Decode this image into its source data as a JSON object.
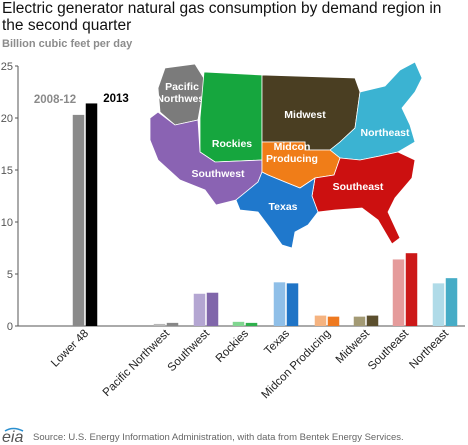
{
  "chart_data": {
    "type": "bar",
    "title": "Electric generator natural gas consumption by demand region in the second quarter",
    "ylabel": "Billion cubic feet per day",
    "ylim": [
      0,
      25
    ],
    "yticks": [
      0,
      5,
      10,
      15,
      20,
      25
    ],
    "grid": false,
    "legend_placement": "top-left (on Lower 48 bars)",
    "categories": [
      "Lower 48",
      "Pacific Northwest",
      "Southwest",
      "Rockies",
      "Texas",
      "Midcon Producing",
      "Midwest",
      "Southeast",
      "Northeast"
    ],
    "series": [
      {
        "name": "2008-12",
        "values": [
          20.3,
          0.2,
          3.1,
          0.4,
          4.2,
          1.0,
          0.9,
          6.4,
          4.1
        ]
      },
      {
        "name": "2013",
        "values": [
          21.4,
          0.3,
          3.2,
          0.3,
          4.1,
          0.9,
          1.0,
          7.0,
          4.6
        ]
      }
    ],
    "colors": {
      "Lower 48": [
        "#8a8a8a",
        "#000000"
      ],
      "Pacific Northwest": [
        "#b8b8b8",
        "#888888"
      ],
      "Southwest": [
        "#b4a6d2",
        "#8066aa"
      ],
      "Rockies": [
        "#80d690",
        "#2fb04c"
      ],
      "Texas": [
        "#8fbfe8",
        "#1f74c6"
      ],
      "Midcon Producing": [
        "#f5b380",
        "#ee7920"
      ],
      "Midwest": [
        "#a39a74",
        "#5b4f2e"
      ],
      "Southeast": [
        "#e59b9b",
        "#cc1818"
      ],
      "Northeast": [
        "#b0dbe8",
        "#46acc6"
      ]
    },
    "map_regions": [
      {
        "name": "Pacific Northwest",
        "label": "Pacific\nNorthwest",
        "color": "#7b7b7b"
      },
      {
        "name": "Rockies",
        "label": "Rockies",
        "color": "#16a63e"
      },
      {
        "name": "Midwest",
        "label": "Midwest",
        "color": "#4a3e22"
      },
      {
        "name": "Northeast",
        "label": "Northeast",
        "color": "#3bb3d2"
      },
      {
        "name": "Southwest",
        "label": "Southwest",
        "color": "#8a63b3"
      },
      {
        "name": "Midcon Producing",
        "label": "Midcon\nProducing",
        "color": "#f07d18"
      },
      {
        "name": "Southeast",
        "label": "Southeast",
        "color": "#cc1010"
      },
      {
        "name": "Texas",
        "label": "Texas",
        "color": "#1f78cc"
      }
    ]
  },
  "source": "Source:  U.S. Energy Information Administration, with data from Bentek Energy Services.",
  "logo_text": "eia"
}
